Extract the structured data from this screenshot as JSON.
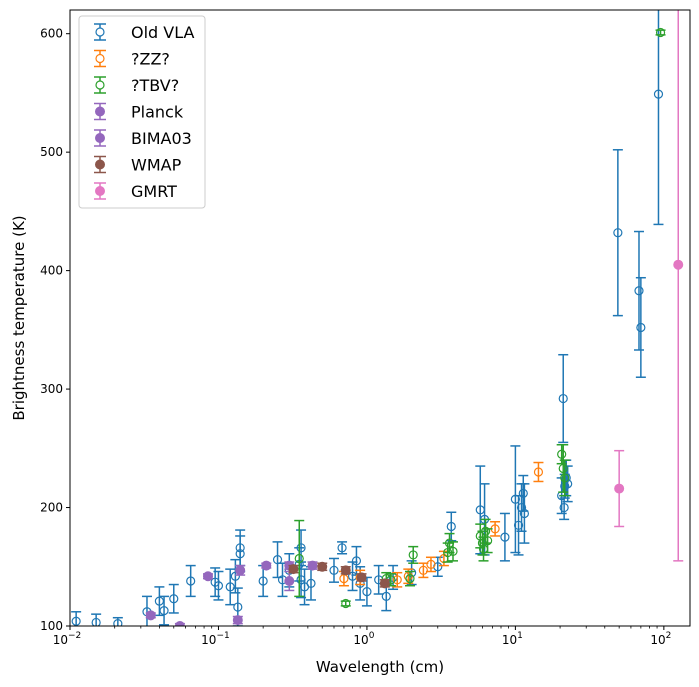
{
  "chart_data": {
    "type": "scatter",
    "xlabel": "Wavelength (cm)",
    "ylabel": "Brightness temperature (K)",
    "xscale": "log",
    "xlim": [
      0.01,
      150
    ],
    "ylim": [
      100,
      620
    ],
    "x_ticks": [
      {
        "value": 0.01,
        "base": "10",
        "exp": "−2"
      },
      {
        "value": 0.1,
        "base": "10",
        "exp": "−1"
      },
      {
        "value": 1,
        "base": "10",
        "exp": "0"
      },
      {
        "value": 10,
        "base": "10",
        "exp": "1"
      },
      {
        "value": 100,
        "base": "10",
        "exp": "2"
      }
    ],
    "y_ticks": [
      "100",
      "200",
      "300",
      "400",
      "500",
      "600"
    ],
    "legend_position": "top-left",
    "series": [
      {
        "name": "Old VLA",
        "color": "#1f77b4",
        "marker": "open",
        "points": [
          [
            0.011,
            104,
            8
          ],
          [
            0.015,
            103,
            7
          ],
          [
            0.021,
            102,
            5
          ],
          [
            0.033,
            112,
            13
          ],
          [
            0.04,
            121,
            12
          ],
          [
            0.043,
            113,
            12
          ],
          [
            0.05,
            123,
            12
          ],
          [
            0.065,
            138,
            13
          ],
          [
            0.095,
            137,
            12
          ],
          [
            0.1,
            134,
            12
          ],
          [
            0.12,
            133,
            15
          ],
          [
            0.13,
            142,
            14
          ],
          [
            0.135,
            116,
            16
          ],
          [
            0.14,
            166,
            15
          ],
          [
            0.14,
            161,
            15
          ],
          [
            0.2,
            138,
            13
          ],
          [
            0.25,
            156,
            15
          ],
          [
            0.27,
            139,
            14
          ],
          [
            0.3,
            147,
            14
          ],
          [
            0.35,
            152,
            14
          ],
          [
            0.36,
            166,
            15
          ],
          [
            0.36,
            139,
            15
          ],
          [
            0.38,
            133,
            15
          ],
          [
            0.42,
            136,
            14
          ],
          [
            0.6,
            147,
            10
          ],
          [
            0.68,
            166,
            5
          ],
          [
            0.8,
            142,
            12
          ],
          [
            0.85,
            155,
            12
          ],
          [
            0.9,
            136,
            14
          ],
          [
            1.0,
            129,
            12
          ],
          [
            1.2,
            139,
            12
          ],
          [
            1.35,
            125,
            12
          ],
          [
            1.5,
            141,
            10
          ],
          [
            2.0,
            145,
            10
          ],
          [
            3.0,
            150,
            8
          ],
          [
            3.7,
            184,
            12
          ],
          [
            5.8,
            198,
            37
          ],
          [
            6.2,
            190,
            30
          ],
          [
            8.5,
            175,
            20
          ],
          [
            10.0,
            207,
            45
          ],
          [
            10.5,
            185,
            25
          ],
          [
            11.0,
            200,
            20
          ],
          [
            11.3,
            212,
            15
          ],
          [
            11.5,
            195,
            25
          ],
          [
            20.5,
            210,
            15
          ],
          [
            21.0,
            292,
            37
          ],
          [
            21.3,
            200,
            10
          ],
          [
            21.5,
            218,
            10
          ],
          [
            22.0,
            225,
            15
          ],
          [
            22.5,
            220,
            15
          ],
          [
            49.0,
            432,
            70
          ],
          [
            68.0,
            383,
            50
          ],
          [
            70.0,
            352,
            42
          ],
          [
            92.0,
            549,
            110
          ]
        ]
      },
      {
        "name": "?ZZ?",
        "color": "#ff7f0e",
        "marker": "open",
        "points": [
          [
            0.7,
            140,
            6
          ],
          [
            0.9,
            141,
            6
          ],
          [
            1.6,
            139,
            6
          ],
          [
            1.9,
            142,
            6
          ],
          [
            2.4,
            147,
            6
          ],
          [
            2.7,
            152,
            6
          ],
          [
            3.3,
            157,
            6
          ],
          [
            7.3,
            182,
            6
          ],
          [
            14.3,
            230,
            8
          ]
        ]
      },
      {
        "name": "?TBV?",
        "color": "#2ca02c",
        "marker": "open",
        "points": [
          [
            0.35,
            157,
            32
          ],
          [
            0.72,
            119,
            2
          ],
          [
            1.35,
            140,
            5
          ],
          [
            1.45,
            139,
            5
          ],
          [
            1.95,
            140,
            6
          ],
          [
            2.05,
            160,
            7
          ],
          [
            3.5,
            162,
            8
          ],
          [
            3.6,
            170,
            8
          ],
          [
            3.8,
            163,
            8
          ],
          [
            5.8,
            176,
            10
          ],
          [
            6.0,
            170,
            10
          ],
          [
            6.1,
            165,
            10
          ],
          [
            6.3,
            180,
            10
          ],
          [
            6.5,
            172,
            10
          ],
          [
            20.5,
            245,
            8
          ],
          [
            21.0,
            233,
            20
          ],
          [
            21.5,
            225,
            15
          ],
          [
            95.0,
            601,
            2
          ]
        ]
      },
      {
        "name": "Planck",
        "color": "#9467bd",
        "marker": "filled",
        "points": [
          [
            0.035,
            109,
            2
          ],
          [
            0.055,
            100,
            2
          ],
          [
            0.085,
            142,
            2
          ],
          [
            0.135,
            105,
            3
          ],
          [
            0.21,
            151,
            2
          ],
          [
            0.3,
            151,
            3
          ],
          [
            0.43,
            151,
            3
          ]
        ]
      },
      {
        "name": "BIMA03",
        "color": "#9467bd",
        "marker": "filled",
        "points": [
          [
            0.3,
            138,
            8
          ],
          [
            0.14,
            147,
            4
          ]
        ]
      },
      {
        "name": "WMAP",
        "color": "#8c564b",
        "marker": "filled",
        "points": [
          [
            0.32,
            148,
            3
          ],
          [
            0.5,
            150,
            3
          ],
          [
            0.72,
            147,
            3
          ],
          [
            0.92,
            141,
            3
          ],
          [
            1.32,
            136,
            3
          ]
        ]
      },
      {
        "name": "GMRT",
        "color": "#e377c2",
        "marker": "filled",
        "points": [
          [
            50.0,
            216,
            32
          ],
          [
            125.0,
            405,
            250
          ]
        ]
      }
    ]
  }
}
